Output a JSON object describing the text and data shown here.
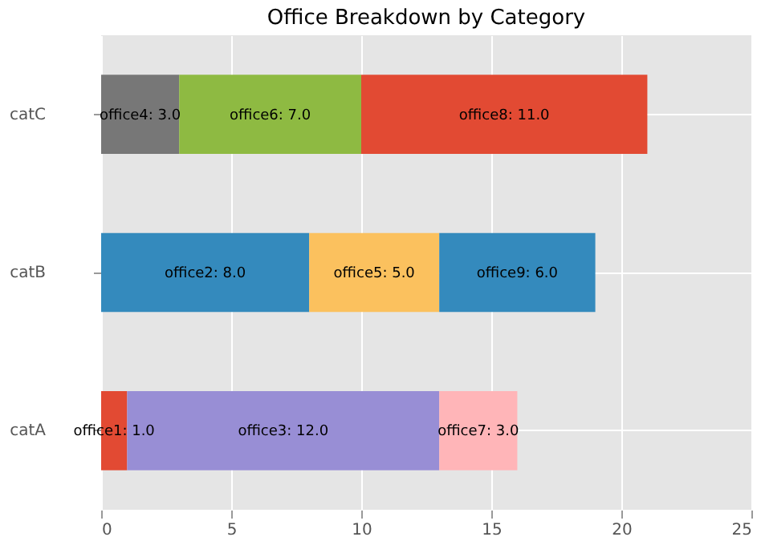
{
  "chart_data": {
    "type": "bar",
    "orientation": "horizontal",
    "stacked": true,
    "title": "Office Breakdown by Category",
    "categories": [
      "catC",
      "catB",
      "catA"
    ],
    "series": [
      {
        "colors": [
          "#777777",
          "#348abd",
          "#e24a33"
        ],
        "values": [
          3.0,
          8.0,
          1.0
        ],
        "value_labels": [
          "office4: 3.0",
          "office2: 8.0",
          "office1: 1.0"
        ]
      },
      {
        "colors": [
          "#8eba42",
          "#fbc15e",
          "#988ed5"
        ],
        "values": [
          7.0,
          5.0,
          12.0
        ],
        "value_labels": [
          "office6: 7.0",
          "office5: 5.0",
          "office3: 12.0"
        ]
      },
      {
        "colors": [
          "#e24a33",
          "#348abd",
          "#ffb5b8"
        ],
        "values": [
          11.0,
          6.0,
          3.0
        ],
        "value_labels": [
          "office8: 11.0",
          "office9: 6.0",
          "office7: 3.0"
        ]
      }
    ],
    "xlim": [
      0,
      25
    ],
    "xticks": [
      0,
      5,
      10,
      15,
      20,
      25
    ],
    "grid": true
  }
}
